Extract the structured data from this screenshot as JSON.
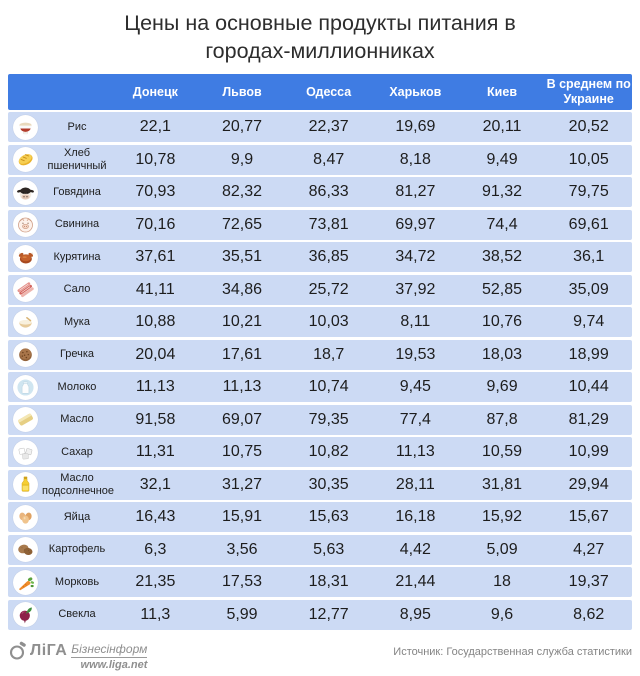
{
  "title_line1": "Цены на основные продукты питания в",
  "title_line2": "городах-миллионниках",
  "colors": {
    "header_bg": "#3f7ce3",
    "row_bg": "#ccdaf4"
  },
  "table": {
    "columns": [
      "Донецк",
      "Львов",
      "Одесса",
      "Харьков",
      "Киев",
      "В среднем по Украине"
    ],
    "rows": [
      {
        "product": "Рис",
        "icon": "rice-icon",
        "values": [
          "22,1",
          "20,77",
          "22,37",
          "19,69",
          "20,11",
          "20,52"
        ]
      },
      {
        "product": "Хлеб пшеничный",
        "icon": "bread-icon",
        "values": [
          "10,78",
          "9,9",
          "8,47",
          "8,18",
          "9,49",
          "10,05"
        ]
      },
      {
        "product": "Говядина",
        "icon": "beef-icon",
        "values": [
          "70,93",
          "82,32",
          "86,33",
          "81,27",
          "91,32",
          "79,75"
        ]
      },
      {
        "product": "Свинина",
        "icon": "pork-icon",
        "values": [
          "70,16",
          "72,65",
          "73,81",
          "69,97",
          "74,4",
          "69,61"
        ]
      },
      {
        "product": "Курятина",
        "icon": "chicken-icon",
        "values": [
          "37,61",
          "35,51",
          "36,85",
          "34,72",
          "38,52",
          "36,1"
        ]
      },
      {
        "product": "Сало",
        "icon": "salo-icon",
        "values": [
          "41,11",
          "34,86",
          "25,72",
          "37,92",
          "52,85",
          "35,09"
        ]
      },
      {
        "product": "Мука",
        "icon": "flour-icon",
        "values": [
          "10,88",
          "10,21",
          "10,03",
          "8,11",
          "10,76",
          "9,74"
        ]
      },
      {
        "product": "Гречка",
        "icon": "buckwheat-icon",
        "values": [
          "20,04",
          "17,61",
          "18,7",
          "19,53",
          "18,03",
          "18,99"
        ]
      },
      {
        "product": "Молоко",
        "icon": "milk-icon",
        "values": [
          "11,13",
          "11,13",
          "10,74",
          "9,45",
          "9,69",
          "10,44"
        ]
      },
      {
        "product": "Масло",
        "icon": "butter-icon",
        "values": [
          "91,58",
          "69,07",
          "79,35",
          "77,4",
          "87,8",
          "81,29"
        ]
      },
      {
        "product": "Сахар",
        "icon": "sugar-icon",
        "values": [
          "11,31",
          "10,75",
          "10,82",
          "11,13",
          "10,59",
          "10,99"
        ]
      },
      {
        "product": "Масло подсолнечное",
        "icon": "oil-icon",
        "values": [
          "32,1",
          "31,27",
          "30,35",
          "28,11",
          "31,81",
          "29,94"
        ]
      },
      {
        "product": "Яйца",
        "icon": "eggs-icon",
        "values": [
          "16,43",
          "15,91",
          "15,63",
          "16,18",
          "15,92",
          "15,67"
        ]
      },
      {
        "product": "Картофель",
        "icon": "potato-icon",
        "values": [
          "6,3",
          "3,56",
          "5,63",
          "4,42",
          "5,09",
          "4,27"
        ]
      },
      {
        "product": "Морковь",
        "icon": "carrot-icon",
        "values": [
          "21,35",
          "17,53",
          "18,31",
          "21,44",
          "18",
          "19,37"
        ]
      },
      {
        "product": "Свекла",
        "icon": "beet-icon",
        "values": [
          "11,3",
          "5,99",
          "12,77",
          "8,95",
          "9,6",
          "8,62"
        ]
      }
    ]
  },
  "footer": {
    "logo_name": "ЛіГА",
    "logo_suffix": "Бізнесінформ",
    "logo_site": "www.liga.net",
    "source": "Источник: Государственная служба статистики"
  },
  "chart_data": {
    "type": "table",
    "title": "Цены на основные продукты питания в городах-миллионниках",
    "columns": [
      "Донецк",
      "Львов",
      "Одесса",
      "Харьков",
      "Киев",
      "В среднем по Украине"
    ],
    "rows": [
      {
        "product": "Рис",
        "values": [
          22.1,
          20.77,
          22.37,
          19.69,
          20.11,
          20.52
        ]
      },
      {
        "product": "Хлеб пшеничный",
        "values": [
          10.78,
          9.9,
          8.47,
          8.18,
          9.49,
          10.05
        ]
      },
      {
        "product": "Говядина",
        "values": [
          70.93,
          82.32,
          86.33,
          81.27,
          91.32,
          79.75
        ]
      },
      {
        "product": "Свинина",
        "values": [
          70.16,
          72.65,
          73.81,
          69.97,
          74.4,
          69.61
        ]
      },
      {
        "product": "Курятина",
        "values": [
          37.61,
          35.51,
          36.85,
          34.72,
          38.52,
          36.1
        ]
      },
      {
        "product": "Сало",
        "values": [
          41.11,
          34.86,
          25.72,
          37.92,
          52.85,
          35.09
        ]
      },
      {
        "product": "Мука",
        "values": [
          10.88,
          10.21,
          10.03,
          8.11,
          10.76,
          9.74
        ]
      },
      {
        "product": "Гречка",
        "values": [
          20.04,
          17.61,
          18.7,
          19.53,
          18.03,
          18.99
        ]
      },
      {
        "product": "Молоко",
        "values": [
          11.13,
          11.13,
          10.74,
          9.45,
          9.69,
          10.44
        ]
      },
      {
        "product": "Масло",
        "values": [
          91.58,
          69.07,
          79.35,
          77.4,
          87.8,
          81.29
        ]
      },
      {
        "product": "Сахар",
        "values": [
          11.31,
          10.75,
          10.82,
          11.13,
          10.59,
          10.99
        ]
      },
      {
        "product": "Масло подсолнечное",
        "values": [
          32.1,
          31.27,
          30.35,
          28.11,
          31.81,
          29.94
        ]
      },
      {
        "product": "Яйца",
        "values": [
          16.43,
          15.91,
          15.63,
          16.18,
          15.92,
          15.67
        ]
      },
      {
        "product": "Картофель",
        "values": [
          6.3,
          3.56,
          5.63,
          4.42,
          5.09,
          4.27
        ]
      },
      {
        "product": "Морковь",
        "values": [
          21.35,
          17.53,
          18.31,
          21.44,
          18,
          19.37
        ]
      },
      {
        "product": "Свекла",
        "values": [
          11.3,
          5.99,
          12.77,
          8.95,
          9.6,
          8.62
        ]
      }
    ],
    "source": "Государственная служба статистики"
  }
}
